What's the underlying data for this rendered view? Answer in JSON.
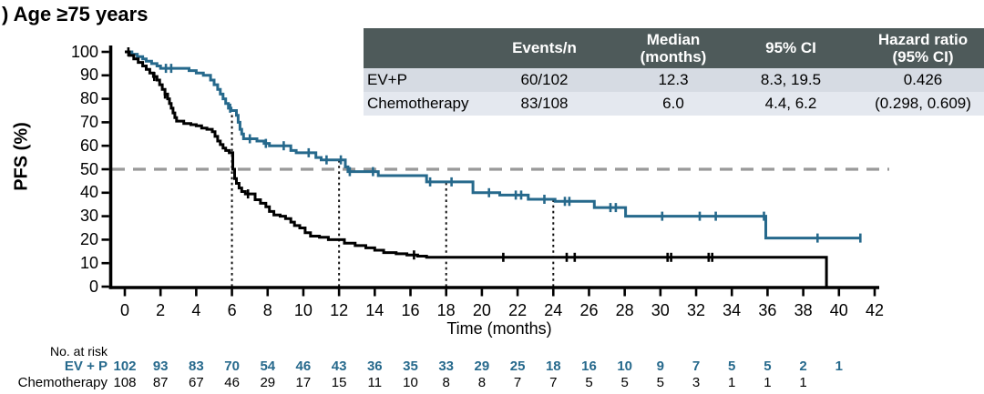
{
  "title": ") Age ≥75 years",
  "stats_table": {
    "columns": [
      "",
      "Events/n",
      "Median\n(months)",
      "95% CI",
      "Hazard ratio\n(95% CI)"
    ],
    "rows": [
      {
        "name": "EV+P",
        "values": [
          "60/102",
          "12.3",
          "8.3, 19.5",
          "0.426"
        ]
      },
      {
        "name": "Chemotherapy",
        "values": [
          "83/108",
          "6.0",
          "4.4, 6.2",
          "(0.298, 0.609)"
        ]
      }
    ]
  },
  "chart_data": {
    "type": "line",
    "subtype": "kaplan-meier-step",
    "title": ") Age ≥75 years",
    "xlabel": "Time (months)",
    "ylabel": "PFS (%)",
    "xlim": [
      0,
      42
    ],
    "ylim": [
      0,
      100
    ],
    "xticks": [
      0,
      2,
      4,
      6,
      8,
      10,
      12,
      14,
      16,
      18,
      20,
      22,
      24,
      26,
      28,
      30,
      32,
      34,
      36,
      38,
      40,
      42
    ],
    "yticks": [
      0,
      10,
      20,
      30,
      40,
      50,
      60,
      70,
      80,
      90,
      100
    ],
    "grid": false,
    "reference_lines": {
      "horizontal_pct": 50,
      "vertical_months": [
        6,
        12,
        18,
        24
      ]
    },
    "series": [
      {
        "name": "EV+P",
        "color": "#26698c",
        "end": 41.25,
        "steps": [
          [
            0,
            100
          ],
          [
            0.4,
            99
          ],
          [
            0.7,
            98
          ],
          [
            1,
            97
          ],
          [
            1.2,
            96
          ],
          [
            1.5,
            95
          ],
          [
            1.8,
            94
          ],
          [
            2,
            93
          ],
          [
            3.6,
            92
          ],
          [
            4,
            91
          ],
          [
            4.4,
            90
          ],
          [
            4.8,
            88
          ],
          [
            5,
            86
          ],
          [
            5.2,
            84
          ],
          [
            5.35,
            82
          ],
          [
            5.5,
            80
          ],
          [
            5.65,
            78
          ],
          [
            5.8,
            76
          ],
          [
            5.95,
            75
          ],
          [
            6.25,
            73
          ],
          [
            6.35,
            70
          ],
          [
            6.45,
            67
          ],
          [
            6.55,
            65
          ],
          [
            6.65,
            63
          ],
          [
            7.4,
            62
          ],
          [
            7.8,
            61
          ],
          [
            8.1,
            60
          ],
          [
            9.3,
            58
          ],
          [
            9.6,
            57
          ],
          [
            10.7,
            55
          ],
          [
            11,
            54
          ],
          [
            12.35,
            51
          ],
          [
            12.5,
            49
          ],
          [
            14.2,
            47.3
          ],
          [
            16.9,
            44.6
          ],
          [
            19.5,
            40
          ],
          [
            21,
            39
          ],
          [
            22.6,
            37.2
          ],
          [
            24.1,
            36.3
          ],
          [
            26.3,
            33.7
          ],
          [
            28.05,
            30
          ],
          [
            35.9,
            20.7
          ]
        ],
        "censor_times": [
          2.3,
          2.6,
          5.9,
          7.0,
          7.9,
          8.9,
          10.3,
          11.3,
          12.1,
          12.6,
          13.9,
          17.1,
          18.3,
          20.4,
          21.9,
          22.2,
          23.5,
          24.65,
          24.9,
          27.2,
          27.5,
          30.1,
          32.2,
          33.1,
          35.8,
          38.8,
          41.2
        ]
      },
      {
        "name": "Chemotherapy",
        "color": "#000000",
        "end": null,
        "steps": [
          [
            0,
            100
          ],
          [
            0.25,
            98.5
          ],
          [
            0.5,
            97
          ],
          [
            0.75,
            95.5
          ],
          [
            1,
            94
          ],
          [
            1.2,
            92.5
          ],
          [
            1.4,
            91
          ],
          [
            1.6,
            89.5
          ],
          [
            1.8,
            88
          ],
          [
            1.95,
            86
          ],
          [
            2.1,
            84
          ],
          [
            2.25,
            82
          ],
          [
            2.4,
            80
          ],
          [
            2.5,
            78
          ],
          [
            2.6,
            76
          ],
          [
            2.7,
            74
          ],
          [
            2.8,
            72
          ],
          [
            2.9,
            70.5
          ],
          [
            3.3,
            69.5
          ],
          [
            3.7,
            69
          ],
          [
            4,
            68.5
          ],
          [
            4.3,
            67.5
          ],
          [
            4.6,
            67
          ],
          [
            4.9,
            66
          ],
          [
            5.05,
            64
          ],
          [
            5.2,
            62
          ],
          [
            5.35,
            60.5
          ],
          [
            5.5,
            59
          ],
          [
            5.65,
            58
          ],
          [
            5.85,
            57
          ],
          [
            6.05,
            50
          ],
          [
            6.15,
            46
          ],
          [
            6.25,
            44
          ],
          [
            6.4,
            42
          ],
          [
            6.55,
            40.5
          ],
          [
            6.75,
            39.5
          ],
          [
            7.3,
            37
          ],
          [
            7.6,
            35.5
          ],
          [
            7.9,
            34
          ],
          [
            8.1,
            32
          ],
          [
            8.35,
            30.5
          ],
          [
            8.7,
            30
          ],
          [
            9,
            29
          ],
          [
            9.3,
            27.5
          ],
          [
            9.5,
            26
          ],
          [
            9.8,
            25
          ],
          [
            10.1,
            23
          ],
          [
            10.4,
            21.5
          ],
          [
            10.9,
            21
          ],
          [
            11.4,
            20
          ],
          [
            12.3,
            18.5
          ],
          [
            12.9,
            17.5
          ],
          [
            13.5,
            16.5
          ],
          [
            14,
            15.5
          ],
          [
            14.5,
            14.5
          ],
          [
            15.2,
            14
          ],
          [
            15.8,
            13.5
          ],
          [
            16.4,
            13
          ],
          [
            16.9,
            12.5
          ],
          [
            39.3,
            0
          ]
        ],
        "censor_times": [
          0.2,
          1.65,
          2.25,
          6.9,
          16.2,
          21.2,
          24.75,
          25.2,
          30.4,
          30.6,
          32.7,
          32.9
        ]
      }
    ]
  },
  "at_risk": {
    "label": "No. at risk",
    "rows": [
      {
        "name": "EV + P",
        "color": "#26698c",
        "bold": true,
        "values": [
          102,
          93,
          83,
          70,
          54,
          46,
          43,
          36,
          35,
          33,
          29,
          25,
          18,
          16,
          10,
          9,
          7,
          5,
          5,
          2,
          1
        ]
      },
      {
        "name": "Chemotherapy",
        "color": "#000000",
        "bold": false,
        "values": [
          108,
          87,
          67,
          46,
          29,
          17,
          15,
          11,
          10,
          8,
          8,
          7,
          7,
          5,
          5,
          5,
          3,
          1,
          1,
          1
        ]
      }
    ]
  },
  "colors": {
    "ev_p_curve": "#26698c",
    "chemo_curve": "#000000",
    "axis": "#000000",
    "dashed_50pct_line": "#999999",
    "dotted_vline": "#111111",
    "table_header_bg": "#4e5a5a",
    "table_row1_bg": "#d6dbe3",
    "table_row2_bg": "#e4e8ef",
    "table_header_text": "#ffffff"
  }
}
